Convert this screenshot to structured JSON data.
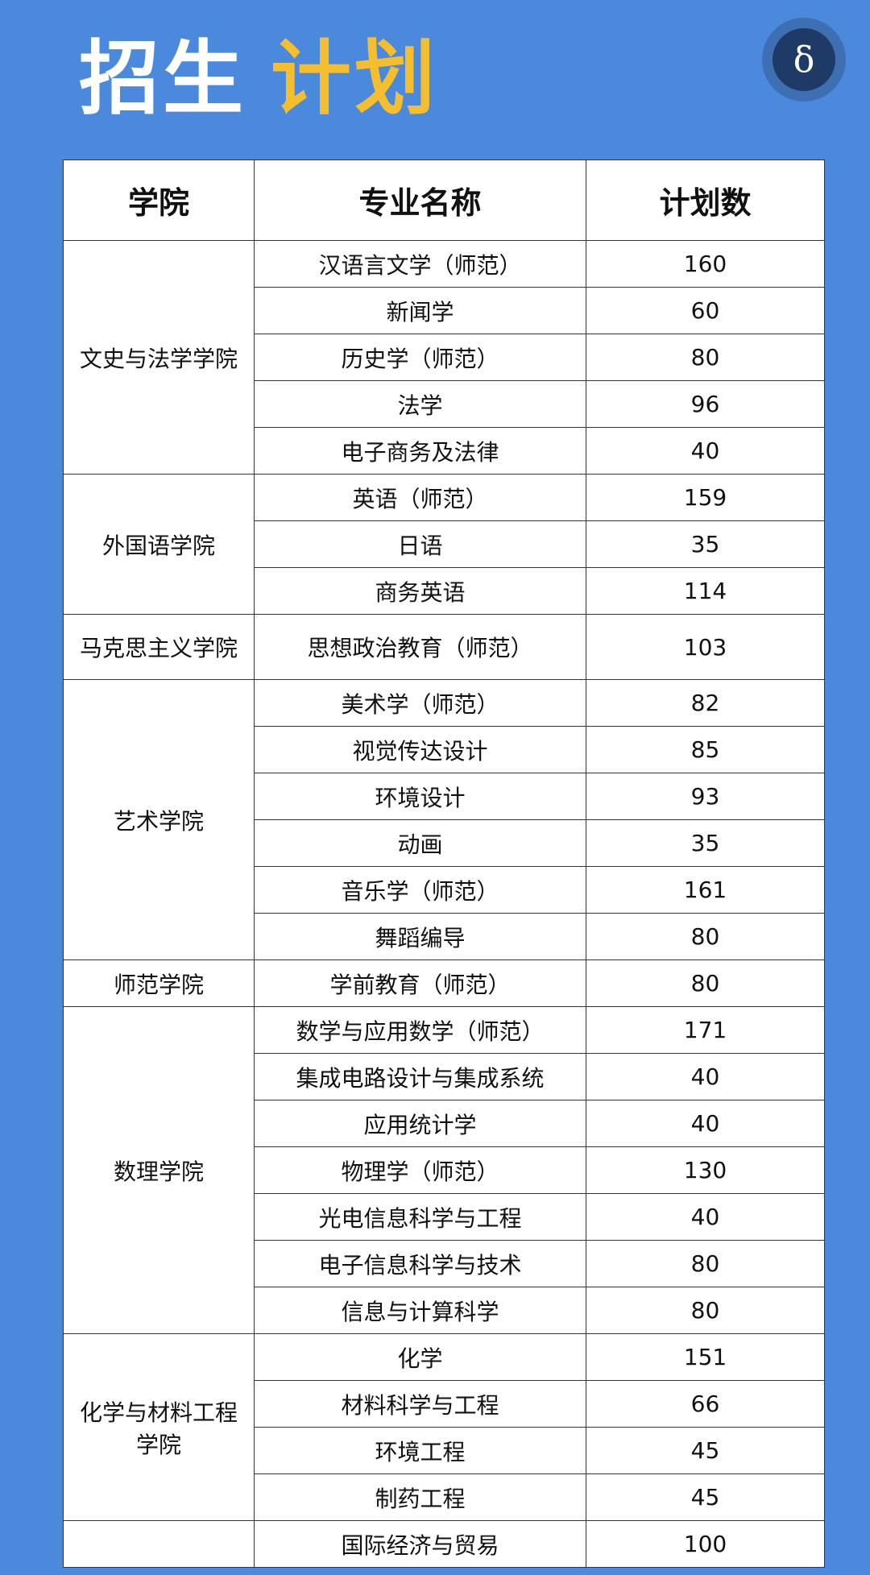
{
  "title": {
    "part1": "招生",
    "part2": "计划"
  },
  "logo": {
    "glyph": "δ"
  },
  "colors": {
    "background": "#4A89DC",
    "title_accent": "#F5BE2E",
    "logo": "#1E3A66"
  },
  "table": {
    "headers": [
      "学院",
      "专业名称",
      "计划数"
    ],
    "groups": [
      {
        "college": "文史与法学学院",
        "majors": [
          {
            "name": "汉语言文学（师范）",
            "count": "160"
          },
          {
            "name": "新闻学",
            "count": "60"
          },
          {
            "name": "历史学（师范）",
            "count": "80"
          },
          {
            "name": "法学",
            "count": "96"
          },
          {
            "name": "电子商务及法律",
            "count": "40"
          }
        ]
      },
      {
        "college": "外国语学院",
        "majors": [
          {
            "name": "英语（师范）",
            "count": "159"
          },
          {
            "name": "日语",
            "count": "35"
          },
          {
            "name": "商务英语",
            "count": "114"
          }
        ]
      },
      {
        "college": "马克思主义学院",
        "majors": [
          {
            "name": "思想政治教育（师范）",
            "count": "103"
          }
        ]
      },
      {
        "college": "艺术学院",
        "majors": [
          {
            "name": "美术学（师范）",
            "count": "82"
          },
          {
            "name": "视觉传达设计",
            "count": "85"
          },
          {
            "name": "环境设计",
            "count": "93"
          },
          {
            "name": "动画",
            "count": "35"
          },
          {
            "name": "音乐学（师范）",
            "count": "161"
          },
          {
            "name": "舞蹈编导",
            "count": "80"
          }
        ]
      },
      {
        "college": "师范学院",
        "majors": [
          {
            "name": "学前教育（师范）",
            "count": "80"
          }
        ]
      },
      {
        "college": "数理学院",
        "majors": [
          {
            "name": "数学与应用数学（师范）",
            "count": "171"
          },
          {
            "name": "集成电路设计与集成系统",
            "count": "40"
          },
          {
            "name": "应用统计学",
            "count": "40"
          },
          {
            "name": "物理学（师范）",
            "count": "130"
          },
          {
            "name": "光电信息科学与工程",
            "count": "40"
          },
          {
            "name": "电子信息科学与技术",
            "count": "80"
          },
          {
            "name": "信息与计算科学",
            "count": "80"
          }
        ]
      },
      {
        "college": "化学与材料工程学院",
        "majors": [
          {
            "name": "化学",
            "count": "151"
          },
          {
            "name": "材料科学与工程",
            "count": "66"
          },
          {
            "name": "环境工程",
            "count": "45"
          },
          {
            "name": "制药工程",
            "count": "45"
          }
        ]
      },
      {
        "college": "",
        "majors": [
          {
            "name": "国际经济与贸易",
            "count": "100"
          }
        ]
      }
    ]
  }
}
